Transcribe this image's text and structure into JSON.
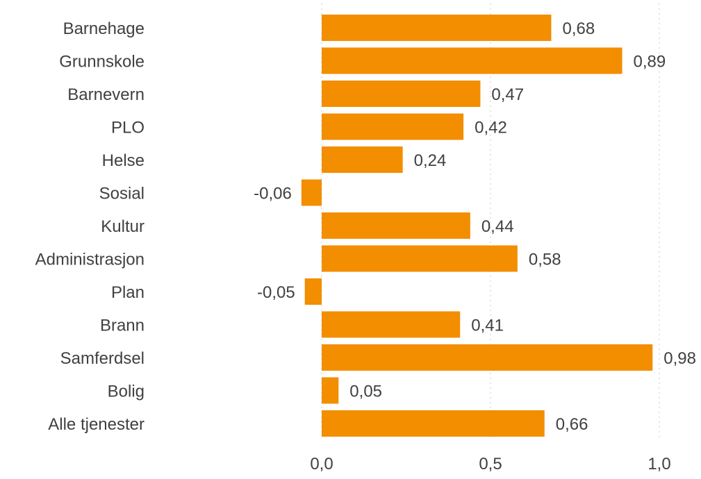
{
  "chart_data": {
    "type": "bar",
    "orientation": "horizontal",
    "categories": [
      "Barnehage",
      "Grunnskole",
      "Barnevern",
      "PLO",
      "Helse",
      "Sosial",
      "Kultur",
      "Administrasjon",
      "Plan",
      "Brann",
      "Samferdsel",
      "Bolig",
      "Alle tjenester"
    ],
    "values": [
      0.68,
      0.89,
      0.47,
      0.42,
      0.24,
      -0.06,
      0.44,
      0.58,
      -0.05,
      0.41,
      0.98,
      0.05,
      0.66
    ],
    "value_labels": [
      "0,68",
      "0,89",
      "0,47",
      "0,42",
      "0,24",
      "-0,06",
      "0,44",
      "0,58",
      "-0,05",
      "0,41",
      "0,98",
      "0,05",
      "0,66"
    ],
    "xlim": [
      -0.1,
      1.0
    ],
    "xticks": [
      0.0,
      0.5,
      1.0
    ],
    "xtick_labels": [
      "0,0",
      "0,5",
      "1,0"
    ],
    "grid": "vertical dotted",
    "legend": "none",
    "bar_color": "#f28e00",
    "text_color": "#404040"
  }
}
